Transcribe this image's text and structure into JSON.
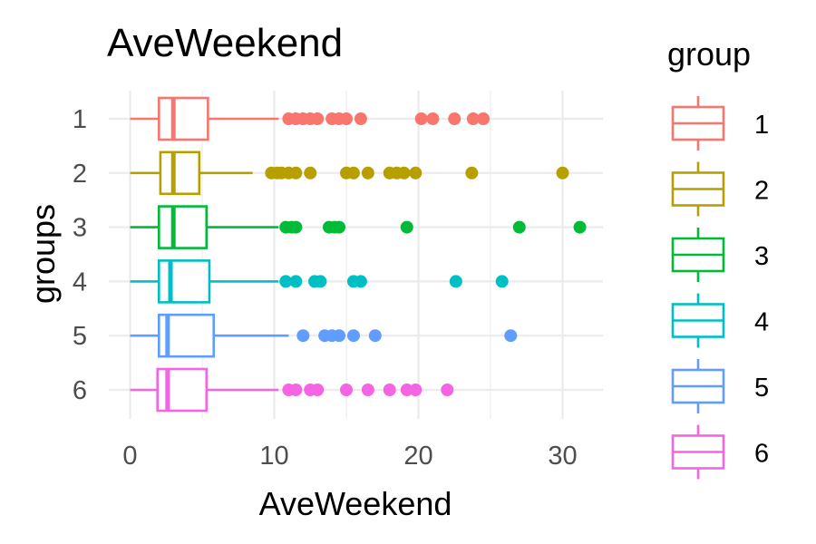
{
  "chart_data": {
    "type": "boxplot",
    "title": "AveWeekend",
    "xlabel": "AveWeekend",
    "ylabel": "groups",
    "orientation": "horizontal",
    "xlim": [
      -0.5,
      32.5
    ],
    "x_ticks": [
      0,
      10,
      20,
      30
    ],
    "x_tick_labels": [
      "0",
      "10",
      "20",
      "30"
    ],
    "categories": [
      "1",
      "2",
      "3",
      "4",
      "5",
      "6"
    ],
    "grid": true,
    "legend": {
      "title": "group",
      "position": "right",
      "entries": [
        "1",
        "2",
        "3",
        "4",
        "5",
        "6"
      ]
    },
    "series": [
      {
        "name": "1",
        "color": "#F8766D",
        "whisker_low": 0.0,
        "q1": 2.0,
        "median": 3.0,
        "q3": 5.4,
        "whisker_high": 10.3,
        "outliers": [
          11.0,
          11.5,
          12.0,
          12.5,
          13.0,
          14.0,
          14.5,
          15.0,
          16.0,
          20.2,
          21.0,
          22.5,
          23.8,
          24.5
        ]
      },
      {
        "name": "2",
        "color": "#B79F00",
        "whisker_low": 0.0,
        "q1": 2.1,
        "median": 3.0,
        "q3": 4.8,
        "whisker_high": 8.5,
        "outliers": [
          9.8,
          10.2,
          10.5,
          11.0,
          11.5,
          12.5,
          15.0,
          15.5,
          16.5,
          18.0,
          18.5,
          19.0,
          19.8,
          23.7,
          30.0
        ]
      },
      {
        "name": "3",
        "color": "#00BA38",
        "whisker_low": 0.0,
        "q1": 2.0,
        "median": 3.0,
        "q3": 5.3,
        "whisker_high": 10.3,
        "outliers": [
          10.8,
          11.2,
          11.5,
          13.8,
          14.2,
          14.5,
          19.2,
          27.0,
          31.2
        ]
      },
      {
        "name": "4",
        "color": "#00BFC4",
        "whisker_low": 0.0,
        "q1": 2.0,
        "median": 2.8,
        "q3": 5.5,
        "whisker_high": 10.3,
        "outliers": [
          10.8,
          11.5,
          12.8,
          13.2,
          15.5,
          16.0,
          22.6,
          25.8
        ]
      },
      {
        "name": "5",
        "color": "#619CFF",
        "whisker_low": 0.0,
        "q1": 2.0,
        "median": 2.6,
        "q3": 5.8,
        "whisker_high": 11.0,
        "outliers": [
          12.0,
          13.5,
          14.0,
          14.5,
          15.5,
          17.0,
          26.4
        ]
      },
      {
        "name": "6",
        "color": "#F564E3",
        "whisker_low": 0.0,
        "q1": 1.9,
        "median": 2.6,
        "q3": 5.3,
        "whisker_high": 10.3,
        "outliers": [
          11.0,
          11.5,
          12.5,
          13.0,
          15.0,
          16.5,
          18.0,
          19.2,
          19.8,
          22.0
        ]
      }
    ]
  }
}
